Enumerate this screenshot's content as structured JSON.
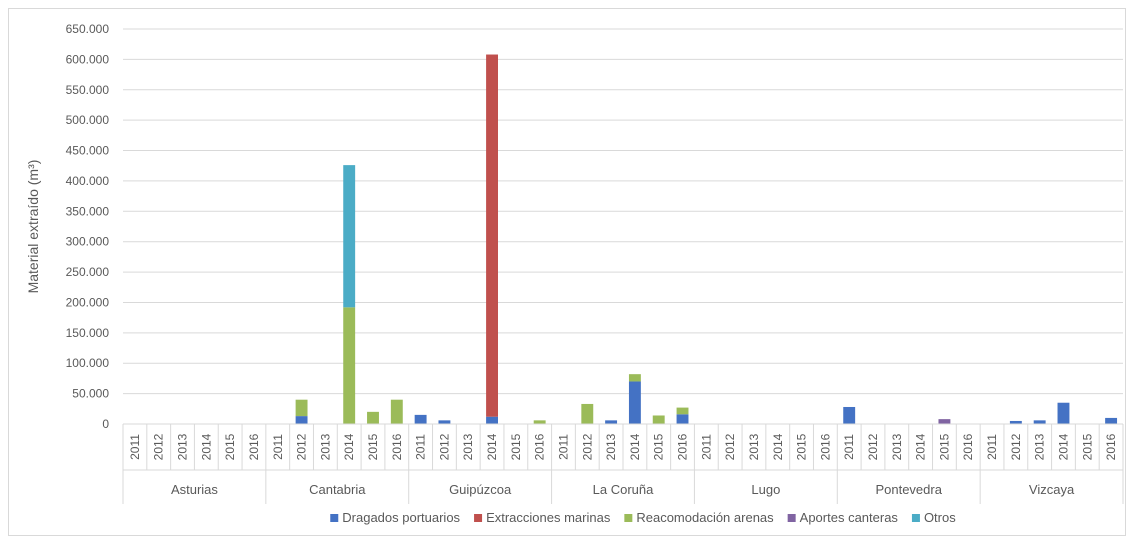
{
  "chart_data": {
    "type": "bar",
    "stacked": true,
    "ylabel": "Material extraído (m³)",
    "ylim": [
      0,
      650000
    ],
    "yticks": [
      0,
      50000,
      100000,
      150000,
      200000,
      250000,
      300000,
      350000,
      400000,
      450000,
      500000,
      550000,
      600000,
      650000
    ],
    "ytick_labels": [
      "0",
      "50.000",
      "100.000",
      "150.000",
      "200.000",
      "250.000",
      "300.000",
      "350.000",
      "400.000",
      "450.000",
      "500.000",
      "550.000",
      "600.000",
      "650.000"
    ],
    "grid": true,
    "legend_position": "bottom",
    "groups": [
      "Asturias",
      "Cantabria",
      "Guipúzcoa",
      "La Coruña",
      "Lugo",
      "Pontevedra",
      "Vizcaya"
    ],
    "years": [
      "2011",
      "2012",
      "2013",
      "2014",
      "2015",
      "2016"
    ],
    "series": [
      {
        "name": "Dragados portuarios",
        "color": "#4472c4",
        "values": [
          [
            0,
            0,
            0,
            0,
            0,
            0
          ],
          [
            0,
            13000,
            0,
            0,
            0,
            0
          ],
          [
            15000,
            6000,
            0,
            12000,
            0,
            0
          ],
          [
            0,
            0,
            6000,
            70000,
            0,
            16000
          ],
          [
            0,
            0,
            0,
            0,
            0,
            0
          ],
          [
            28000,
            0,
            0,
            0,
            0,
            0
          ],
          [
            0,
            5000,
            6000,
            35000,
            0,
            10000
          ]
        ]
      },
      {
        "name": "Extracciones marinas",
        "color": "#c0504d",
        "values": [
          [
            0,
            0,
            0,
            0,
            0,
            0
          ],
          [
            0,
            0,
            0,
            0,
            0,
            0
          ],
          [
            0,
            0,
            0,
            596000,
            0,
            0
          ],
          [
            0,
            0,
            0,
            0,
            0,
            0
          ],
          [
            0,
            0,
            0,
            0,
            0,
            0
          ],
          [
            0,
            0,
            0,
            0,
            0,
            0
          ],
          [
            0,
            0,
            0,
            0,
            0,
            0
          ]
        ]
      },
      {
        "name": "Reacomodación arenas",
        "color": "#9bbb59",
        "values": [
          [
            0,
            0,
            0,
            0,
            0,
            0
          ],
          [
            0,
            27000,
            0,
            192000,
            20000,
            40000
          ],
          [
            0,
            0,
            0,
            0,
            0,
            6000
          ],
          [
            0,
            33000,
            0,
            12000,
            14000,
            11000
          ],
          [
            0,
            0,
            0,
            0,
            0,
            0
          ],
          [
            0,
            0,
            0,
            0,
            0,
            0
          ],
          [
            0,
            0,
            0,
            0,
            0,
            0
          ]
        ]
      },
      {
        "name": "Aportes canteras",
        "color": "#8064a2",
        "values": [
          [
            0,
            0,
            0,
            0,
            0,
            0
          ],
          [
            0,
            0,
            0,
            0,
            0,
            0
          ],
          [
            0,
            0,
            0,
            0,
            0,
            0
          ],
          [
            0,
            0,
            0,
            0,
            0,
            0
          ],
          [
            0,
            0,
            0,
            0,
            0,
            0
          ],
          [
            0,
            0,
            0,
            0,
            8000,
            0
          ],
          [
            0,
            0,
            0,
            0,
            0,
            0
          ]
        ]
      },
      {
        "name": "Otros",
        "color": "#4bacc6",
        "values": [
          [
            0,
            0,
            0,
            0,
            0,
            0
          ],
          [
            0,
            0,
            0,
            234000,
            0,
            0
          ],
          [
            0,
            0,
            0,
            0,
            0,
            0
          ],
          [
            0,
            0,
            0,
            0,
            0,
            0
          ],
          [
            0,
            0,
            0,
            0,
            0,
            0
          ],
          [
            0,
            0,
            0,
            0,
            0,
            0
          ],
          [
            0,
            0,
            0,
            0,
            0,
            0
          ]
        ]
      }
    ]
  }
}
